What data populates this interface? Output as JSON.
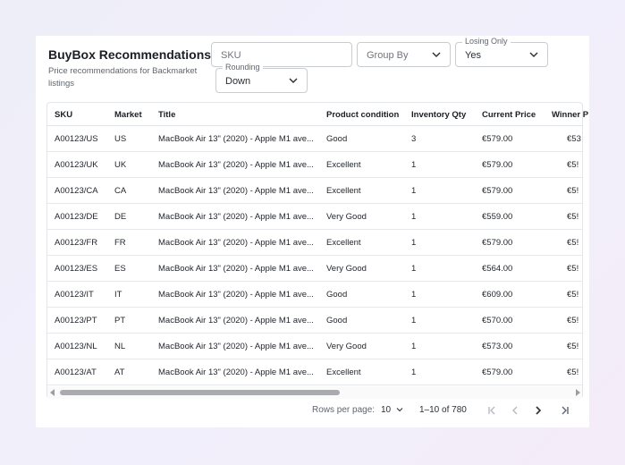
{
  "header": {
    "title": "BuyBox Recommendations",
    "subtitle": "Price recommendations for Backmarket listings"
  },
  "filters": {
    "sku_placeholder": "SKU",
    "group_by_placeholder": "Group By",
    "losing_only_label": "Losing Only",
    "losing_only_value": "Yes",
    "rounding_label": "Rounding",
    "rounding_value": "Down"
  },
  "table": {
    "columns": [
      "SKU",
      "Market",
      "Title",
      "Product condition",
      "Inventory Qty",
      "Current Price",
      "Winner P"
    ],
    "rows": [
      {
        "sku": "A00123/US",
        "market": "US",
        "title": "MacBook Air 13\" (2020) - Apple M1 ave...",
        "condition": "Good",
        "qty": "3",
        "price": "€579.00",
        "winner": "€53"
      },
      {
        "sku": "A00123/UK",
        "market": "UK",
        "title": "MacBook Air 13\" (2020) - Apple M1 ave...",
        "condition": "Excellent",
        "qty": "1",
        "price": "€579.00",
        "winner": "€5!"
      },
      {
        "sku": "A00123/CA",
        "market": "CA",
        "title": "MacBook Air 13\" (2020) - Apple M1 ave...",
        "condition": "Excellent",
        "qty": "1",
        "price": "€579.00",
        "winner": "€5!"
      },
      {
        "sku": "A00123/DE",
        "market": "DE",
        "title": "MacBook Air 13\" (2020) - Apple M1 ave...",
        "condition": "Very Good",
        "qty": "1",
        "price": "€559.00",
        "winner": "€5!"
      },
      {
        "sku": "A00123/FR",
        "market": "FR",
        "title": "MacBook Air 13\" (2020) - Apple M1 ave...",
        "condition": "Excellent",
        "qty": "1",
        "price": "€579.00",
        "winner": "€5!"
      },
      {
        "sku": "A00123/ES",
        "market": "ES",
        "title": "MacBook Air 13\" (2020) - Apple M1 ave...",
        "condition": "Very Good",
        "qty": "1",
        "price": "€564.00",
        "winner": "€5!"
      },
      {
        "sku": "A00123/IT",
        "market": "IT",
        "title": "MacBook Air 13\" (2020) - Apple M1 ave...",
        "condition": "Good",
        "qty": "1",
        "price": "€609.00",
        "winner": "€5!"
      },
      {
        "sku": "A00123/PT",
        "market": "PT",
        "title": "MacBook Air 13\" (2020) - Apple M1 ave...",
        "condition": "Good",
        "qty": "1",
        "price": "€570.00",
        "winner": "€5!"
      },
      {
        "sku": "A00123/NL",
        "market": "NL",
        "title": "MacBook Air 13\" (2020) - Apple M1 ave...",
        "condition": "Very Good",
        "qty": "1",
        "price": "€573.00",
        "winner": "€5!"
      },
      {
        "sku": "A00123/AT",
        "market": "AT",
        "title": "MacBook Air 13\" (2020) - Apple M1 ave...",
        "condition": "Excellent",
        "qty": "1",
        "price": "€579.00",
        "winner": "€5!"
      }
    ]
  },
  "pagination": {
    "rows_per_page_label": "Rows per page:",
    "rows_per_page_value": "10",
    "range": "1–10 of 780"
  },
  "icons": {
    "dropdown": "chevron-down-icon",
    "first": "first-page-icon",
    "prev": "previous-page-icon",
    "next": "next-page-icon",
    "last": "last-page-icon"
  },
  "colors": {
    "scroll_thumb": "#a9abae",
    "border": "#c9ccd1",
    "disabled_icon": "#b5b9bf",
    "active_icon": "#2a2e34"
  }
}
